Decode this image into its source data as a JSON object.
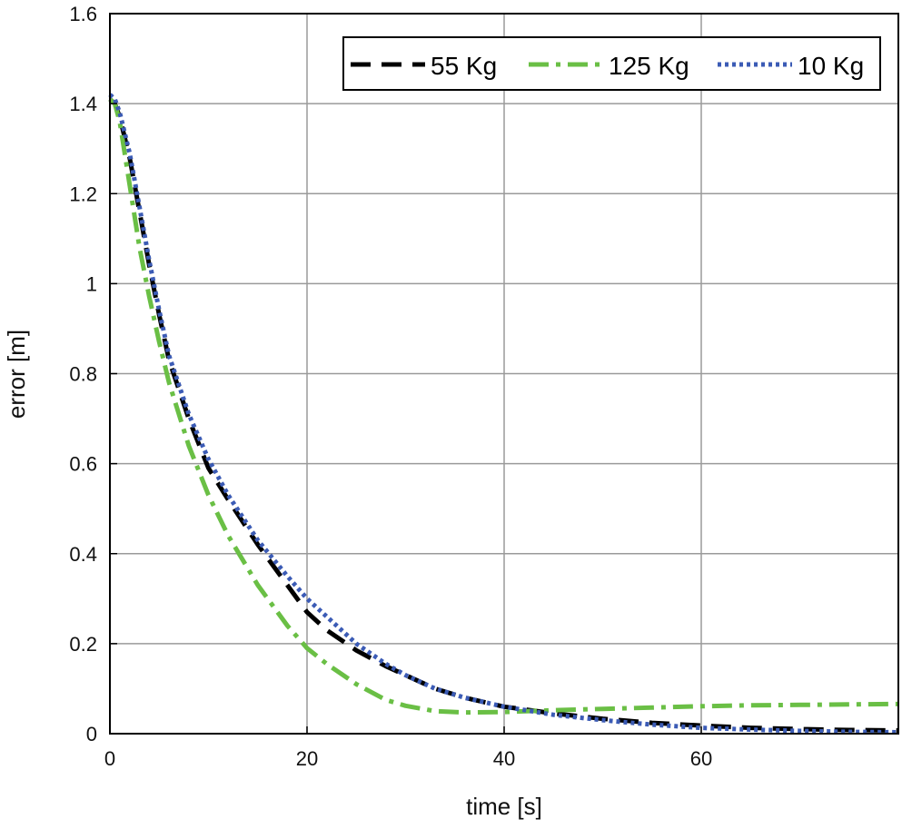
{
  "chart_data": {
    "type": "line",
    "title": "",
    "xlabel": "time [s]",
    "ylabel": "error [m]",
    "xlim": [
      0,
      80
    ],
    "ylim": [
      0,
      1.6
    ],
    "grid": true,
    "legend_position": "top-right",
    "x_ticks": [
      0,
      20,
      40,
      60
    ],
    "x_tick_labels": [
      "0",
      "20",
      "40",
      "60"
    ],
    "y_ticks": [
      0,
      0.2,
      0.4,
      0.6,
      0.8,
      1.0,
      1.2,
      1.4,
      1.6
    ],
    "y_tick_labels": [
      "0",
      "0.2",
      "0.4",
      "0.6",
      "0.8",
      "1",
      "1.2",
      "1.4",
      "1.6"
    ],
    "series": [
      {
        "name": "55 Kg",
        "color": "#000000",
        "style": "dashed",
        "x": [
          0,
          0.5,
          1,
          2,
          3,
          4,
          5,
          6,
          8,
          10,
          12,
          15,
          18,
          20,
          22,
          25,
          28,
          30,
          33,
          36,
          40,
          45,
          50,
          55,
          60,
          65,
          70,
          75,
          80
        ],
        "y": [
          1.41,
          1.4,
          1.37,
          1.28,
          1.16,
          1.04,
          0.93,
          0.83,
          0.7,
          0.59,
          0.52,
          0.42,
          0.33,
          0.27,
          0.23,
          0.185,
          0.15,
          0.13,
          0.1,
          0.08,
          0.06,
          0.045,
          0.033,
          0.024,
          0.018,
          0.013,
          0.01,
          0.008,
          0.007
        ]
      },
      {
        "name": "125 Kg",
        "color": "#6abf45",
        "style": "dash-dot",
        "x": [
          0,
          0.5,
          1,
          2,
          3,
          4,
          5,
          6,
          8,
          10,
          12,
          15,
          18,
          20,
          22,
          25,
          28,
          30,
          33,
          36,
          40,
          45,
          50,
          55,
          60,
          65,
          70,
          75,
          80
        ],
        "y": [
          1.41,
          1.4,
          1.36,
          1.22,
          1.08,
          0.97,
          0.87,
          0.78,
          0.64,
          0.53,
          0.44,
          0.33,
          0.24,
          0.19,
          0.155,
          0.11,
          0.075,
          0.062,
          0.05,
          0.047,
          0.048,
          0.052,
          0.055,
          0.058,
          0.061,
          0.063,
          0.064,
          0.065,
          0.066
        ]
      },
      {
        "name": "10 Kg",
        "color": "#3b5bb5",
        "style": "dotted",
        "x": [
          0,
          0.5,
          1,
          2,
          3,
          4,
          5,
          6,
          8,
          10,
          12,
          15,
          18,
          20,
          22,
          25,
          28,
          30,
          33,
          36,
          40,
          45,
          50,
          55,
          60,
          65,
          70,
          75,
          80
        ],
        "y": [
          1.42,
          1.41,
          1.38,
          1.29,
          1.17,
          1.05,
          0.94,
          0.84,
          0.71,
          0.61,
          0.53,
          0.43,
          0.35,
          0.3,
          0.26,
          0.2,
          0.155,
          0.13,
          0.1,
          0.08,
          0.06,
          0.042,
          0.03,
          0.02,
          0.013,
          0.009,
          0.006,
          0.004,
          0.003
        ]
      }
    ]
  }
}
